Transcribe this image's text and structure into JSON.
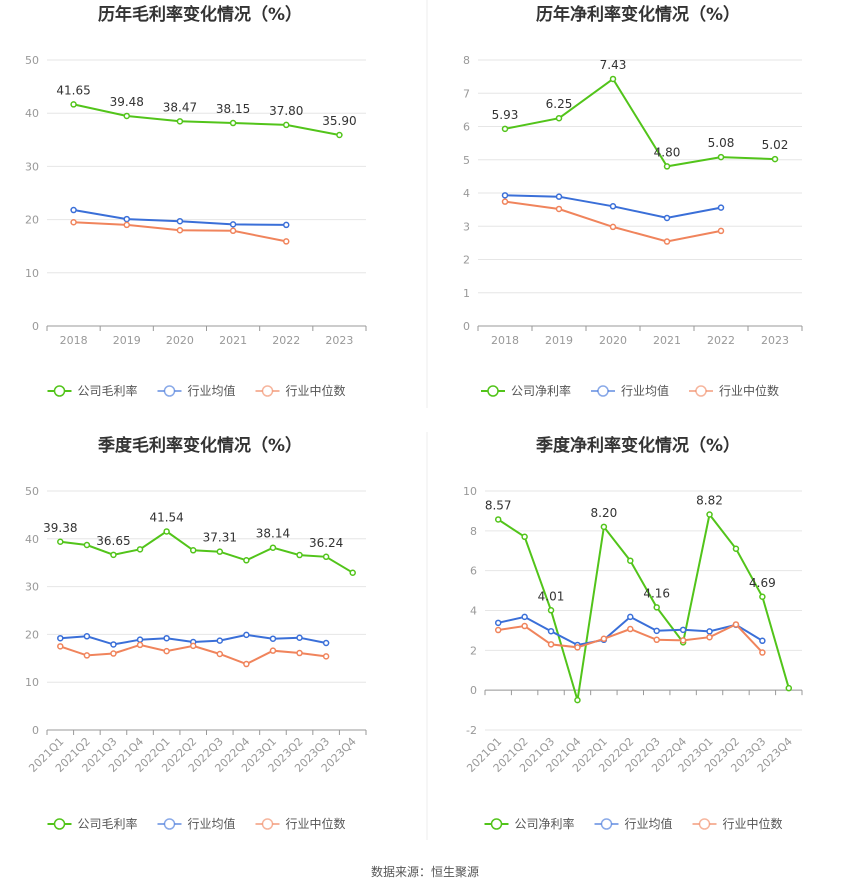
{
  "source": "数据来源：恒生聚源",
  "colors": {
    "company": "#52c41a",
    "industry_avg": "#3a6fd8",
    "industry_median": "#f0845c",
    "grid": "#e6e6e6",
    "axis": "#999999"
  },
  "chart_data": [
    {
      "type": "line",
      "title": "历年毛利率变化情况（%）",
      "categories": [
        "2018",
        "2019",
        "2020",
        "2021",
        "2022",
        "2023"
      ],
      "ylim": [
        0,
        50
      ],
      "yticks": [
        0,
        10,
        20,
        30,
        40,
        50
      ],
      "legend": "bottom-center",
      "grid": true,
      "series": [
        {
          "name": "公司毛利率",
          "color": "#52c41a",
          "values": [
            41.65,
            39.48,
            38.47,
            38.15,
            37.8,
            35.9
          ],
          "labels": [
            "41.65",
            "39.48",
            "38.47",
            "38.15",
            "37.80",
            "35.90"
          ]
        },
        {
          "name": "行业均值",
          "color": "#3a6fd8",
          "values": [
            21.8,
            20.1,
            19.7,
            19.1,
            19.0,
            null
          ]
        },
        {
          "name": "行业中位数",
          "color": "#f0845c",
          "values": [
            19.5,
            19.0,
            18.0,
            17.9,
            15.9,
            null
          ]
        }
      ]
    },
    {
      "type": "line",
      "title": "历年净利率变化情况（%）",
      "categories": [
        "2018",
        "2019",
        "2020",
        "2021",
        "2022",
        "2023"
      ],
      "ylim": [
        0,
        8
      ],
      "yticks": [
        0,
        1,
        2,
        3,
        4,
        5,
        6,
        7,
        8
      ],
      "legend": "bottom-center",
      "grid": true,
      "series": [
        {
          "name": "公司净利率",
          "color": "#52c41a",
          "values": [
            5.93,
            6.25,
            7.43,
            4.8,
            5.08,
            5.02
          ],
          "labels": [
            "5.93",
            "6.25",
            "7.43",
            "4.80",
            "5.08",
            "5.02"
          ]
        },
        {
          "name": "行业均值",
          "color": "#3a6fd8",
          "values": [
            3.93,
            3.89,
            3.6,
            3.25,
            3.56,
            null
          ]
        },
        {
          "name": "行业中位数",
          "color": "#f0845c",
          "values": [
            3.74,
            3.52,
            2.98,
            2.54,
            2.86,
            null
          ]
        }
      ]
    },
    {
      "type": "line",
      "title": "季度毛利率变化情况（%）",
      "categories": [
        "2021Q1",
        "2021Q2",
        "2021Q3",
        "2021Q4",
        "2022Q1",
        "2022Q2",
        "2022Q3",
        "2022Q4",
        "2023Q1",
        "2023Q2",
        "2023Q3",
        "2023Q4"
      ],
      "ylim": [
        0,
        50
      ],
      "yticks": [
        0,
        10,
        20,
        30,
        40,
        50
      ],
      "legend": "bottom-center",
      "grid": true,
      "series": [
        {
          "name": "公司毛利率",
          "color": "#52c41a",
          "values": [
            39.38,
            38.7,
            36.65,
            37.8,
            41.54,
            37.6,
            37.31,
            35.5,
            38.14,
            36.6,
            36.24,
            32.9
          ],
          "labels": [
            "39.38",
            "",
            "36.65",
            "",
            "41.54",
            "",
            "37.31",
            "",
            "38.14",
            "",
            "36.24",
            ""
          ]
        },
        {
          "name": "行业均值",
          "color": "#3a6fd8",
          "values": [
            19.2,
            19.6,
            17.9,
            18.9,
            19.2,
            18.4,
            18.7,
            19.9,
            19.1,
            19.3,
            18.2,
            null
          ]
        },
        {
          "name": "行业中位数",
          "color": "#f0845c",
          "values": [
            17.5,
            15.6,
            16.0,
            17.8,
            16.5,
            17.6,
            15.9,
            13.8,
            16.6,
            16.1,
            15.4,
            null
          ]
        }
      ]
    },
    {
      "type": "line",
      "title": "季度净利率变化情况（%）",
      "categories": [
        "2021Q1",
        "2021Q2",
        "2021Q3",
        "2021Q4",
        "2022Q1",
        "2022Q2",
        "2022Q3",
        "2022Q4",
        "2023Q1",
        "2023Q2",
        "2023Q3",
        "2023Q4"
      ],
      "ylim": [
        -2,
        10
      ],
      "yticks": [
        -2,
        0,
        2,
        4,
        6,
        8,
        10
      ],
      "legend": "bottom-center",
      "grid": true,
      "series": [
        {
          "name": "公司净利率",
          "color": "#52c41a",
          "values": [
            8.57,
            7.7,
            4.01,
            -0.5,
            8.2,
            6.5,
            4.16,
            2.4,
            8.82,
            7.1,
            4.69,
            0.1
          ],
          "labels": [
            "8.57",
            "",
            "4.01",
            "",
            "8.20",
            "",
            "4.16",
            "",
            "8.82",
            "",
            "4.69",
            ""
          ]
        },
        {
          "name": "行业均值",
          "color": "#3a6fd8",
          "values": [
            3.38,
            3.68,
            2.96,
            2.27,
            2.53,
            3.68,
            2.98,
            3.03,
            2.95,
            3.28,
            2.48,
            null
          ]
        },
        {
          "name": "行业中位数",
          "color": "#f0845c",
          "values": [
            3.02,
            3.22,
            2.3,
            2.15,
            2.58,
            3.07,
            2.53,
            2.5,
            2.66,
            3.3,
            1.89,
            null
          ]
        }
      ]
    }
  ]
}
